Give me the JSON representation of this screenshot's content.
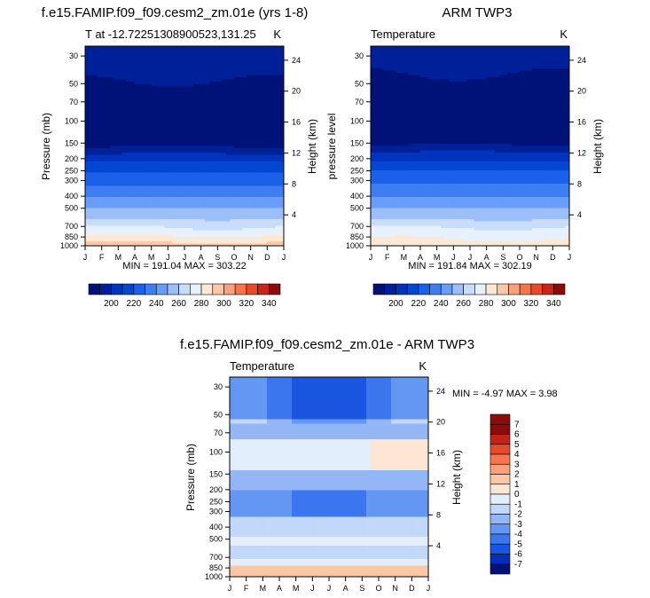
{
  "chart_data": [
    {
      "type": "contour",
      "title": "f.e15.FAMIP.f09_f09.cesm2_zm.01e (yrs 1-8)",
      "left_string": "T at -12.72251308900523,131.25",
      "right_string": "K",
      "xlabel": "",
      "ylabel": "Pressure (mb)",
      "right_axis_label": "Height (km)",
      "x_categories": [
        "J",
        "F",
        "M",
        "A",
        "M",
        "J",
        "J",
        "A",
        "S",
        "O",
        "N",
        "D",
        "J"
      ],
      "y_ticks": [
        "30",
        "50",
        "70",
        "100",
        "150",
        "200",
        "250",
        "300",
        "400",
        "500",
        "700",
        "850",
        "1000"
      ],
      "y_values": [
        30,
        50,
        70,
        100,
        150,
        200,
        250,
        300,
        400,
        500,
        700,
        850,
        1000
      ],
      "right_ticks": [
        "24",
        "20",
        "16",
        "12",
        "8",
        "4"
      ],
      "right_values_km": [
        24,
        20,
        16,
        12,
        8,
        4
      ],
      "ylim_mb": [
        1000,
        25
      ],
      "stats": "MIN = 191.04 MAX = 303.22",
      "colorbar": {
        "labels": [
          "200",
          "220",
          "240",
          "260",
          "280",
          "300",
          "320",
          "340"
        ]
      },
      "level_profile": [
        {
          "p": 25,
          "level": 1
        },
        {
          "p": 40,
          "level": 1
        },
        {
          "p": 55,
          "level": 0
        },
        {
          "p": 150,
          "level": 0
        },
        {
          "p": 170,
          "level": 1
        },
        {
          "p": 195,
          "level": 2
        },
        {
          "p": 230,
          "level": 3
        },
        {
          "p": 290,
          "level": 4
        },
        {
          "p": 370,
          "level": 5
        },
        {
          "p": 450,
          "level": 6
        },
        {
          "p": 560,
          "level": 7
        },
        {
          "p": 650,
          "level": 8
        },
        {
          "p": 780,
          "level": 9
        },
        {
          "p": 880,
          "level": 10
        },
        {
          "p": 1000,
          "level": 11
        }
      ]
    },
    {
      "type": "contour",
      "title": "ARM TWP3",
      "left_string": "Temperature",
      "right_string": "K",
      "xlabel": "",
      "ylabel": "pressure level",
      "right_axis_label": "Height (km)",
      "x_categories": [
        "J",
        "F",
        "M",
        "A",
        "M",
        "J",
        "J",
        "A",
        "S",
        "O",
        "N",
        "D",
        "J"
      ],
      "y_ticks": [
        "30",
        "50",
        "70",
        "100",
        "150",
        "200",
        "250",
        "300",
        "400",
        "500",
        "700",
        "850",
        "1000"
      ],
      "y_values": [
        30,
        50,
        70,
        100,
        150,
        200,
        250,
        300,
        400,
        500,
        700,
        850,
        1000
      ],
      "right_ticks": [
        "24",
        "20",
        "16",
        "12",
        "8",
        "4"
      ],
      "right_values_km": [
        24,
        20,
        16,
        12,
        8,
        4
      ],
      "ylim_mb": [
        1000,
        25
      ],
      "stats": "MIN = 191.84 MAX = 302.19",
      "colorbar": {
        "labels": [
          "200",
          "220",
          "240",
          "260",
          "280",
          "300",
          "320",
          "340"
        ]
      },
      "level_profile": [
        {
          "p": 25,
          "level": 1
        },
        {
          "p": 35,
          "level": 1
        },
        {
          "p": 50,
          "level": 0
        },
        {
          "p": 145,
          "level": 0
        },
        {
          "p": 165,
          "level": 1
        },
        {
          "p": 190,
          "level": 2
        },
        {
          "p": 225,
          "level": 3
        },
        {
          "p": 285,
          "level": 4
        },
        {
          "p": 360,
          "level": 5
        },
        {
          "p": 450,
          "level": 6
        },
        {
          "p": 560,
          "level": 7
        },
        {
          "p": 660,
          "level": 8
        },
        {
          "p": 780,
          "level": 9
        },
        {
          "p": 1000,
          "level": 10
        }
      ]
    },
    {
      "type": "contour",
      "title": "f.e15.FAMIP.f09_f09.cesm2_zm.01e - ARM TWP3",
      "left_string": "Temperature",
      "right_string": "K",
      "xlabel": "",
      "ylabel": "Pressure (mb)",
      "right_axis_label": "Height (km)",
      "x_categories": [
        "J",
        "F",
        "M",
        "A",
        "M",
        "J",
        "J",
        "A",
        "S",
        "O",
        "N",
        "D",
        "J"
      ],
      "y_ticks": [
        "30",
        "50",
        "70",
        "100",
        "150",
        "200",
        "250",
        "300",
        "400",
        "500",
        "700",
        "850",
        "1000"
      ],
      "y_values": [
        30,
        50,
        70,
        100,
        150,
        200,
        250,
        300,
        400,
        500,
        700,
        850,
        1000
      ],
      "right_ticks": [
        "24",
        "20",
        "16",
        "12",
        "8",
        "4"
      ],
      "right_values_km": [
        24,
        20,
        16,
        12,
        8,
        4
      ],
      "ylim_mb": [
        1000,
        25
      ],
      "stats": "MIN =  -4.97 MAX =   3.98",
      "colorbar": {
        "labels": [
          "7",
          "6",
          "5",
          "4",
          "3",
          "2",
          "1",
          "0",
          "-1",
          "-2",
          "-3",
          "-4",
          "-5",
          "-6",
          "-7"
        ]
      },
      "bands": [
        {
          "p_top": 25,
          "p_bot": 55,
          "value": -4
        },
        {
          "p_top": 55,
          "p_bot": 80,
          "value": -2
        },
        {
          "p_top": 80,
          "p_bot": 140,
          "value": -0.5
        },
        {
          "p_top": 140,
          "p_bot": 200,
          "value": -2
        },
        {
          "p_top": 200,
          "p_bot": 330,
          "value": -3
        },
        {
          "p_top": 330,
          "p_bot": 480,
          "value": -1.5
        },
        {
          "p_top": 480,
          "p_bot": 560,
          "value": -0.5
        },
        {
          "p_top": 560,
          "p_bot": 720,
          "value": -1.5
        },
        {
          "p_top": 720,
          "p_bot": 820,
          "value": -0.5
        },
        {
          "p_top": 820,
          "p_bot": 1000,
          "value": 1.5
        }
      ]
    }
  ],
  "colors": {
    "levels": [
      "#001278",
      "#002099",
      "#0034be",
      "#0047d4",
      "#1a60e8",
      "#3f7ef2",
      "#6a9df7",
      "#9cbef9",
      "#c8dcfb",
      "#e7f0fd",
      "#fde8d6",
      "#fcc8a8",
      "#fba07c",
      "#f6754f",
      "#e94a2c",
      "#c9231a",
      "#8c0c0c"
    ]
  }
}
